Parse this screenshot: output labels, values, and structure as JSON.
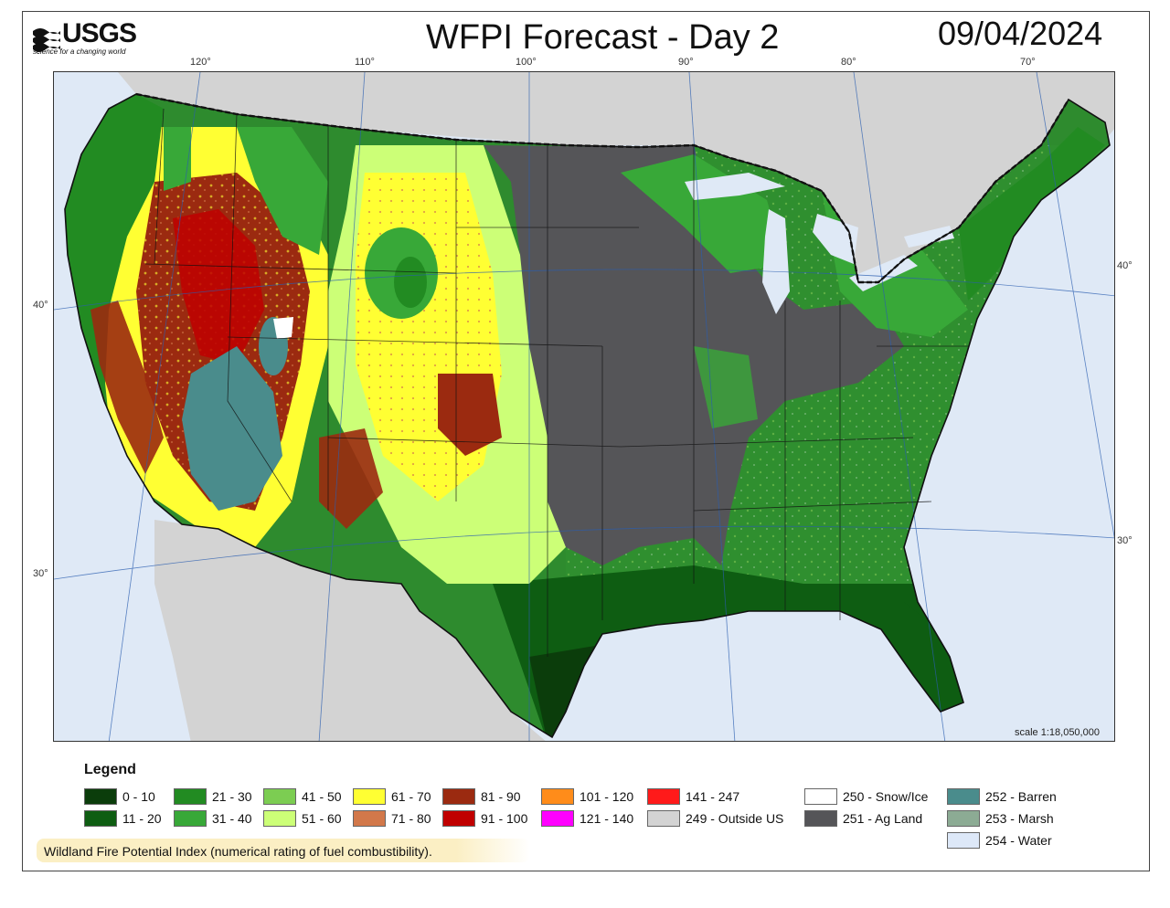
{
  "header": {
    "logo_text": "USGS",
    "logo_tagline": "science for a changing world",
    "title": "WFPI Forecast - Day 2",
    "date": "09/04/2024"
  },
  "map": {
    "longitude_labels": [
      "120°",
      "110°",
      "100°",
      "90°",
      "80°",
      "70°"
    ],
    "latitude_labels_left": [
      "40°",
      "30°"
    ],
    "latitude_labels_right": [
      "40°",
      "30°"
    ],
    "scale_text": "scale 1:18,050,000"
  },
  "legend": {
    "title": "Legend",
    "items": [
      {
        "label": "0 - 10",
        "color": "#0b3d0b"
      },
      {
        "label": "11 - 20",
        "color": "#0e5d12"
      },
      {
        "label": "21 - 30",
        "color": "#228b22"
      },
      {
        "label": "31 - 40",
        "color": "#38a838"
      },
      {
        "label": "41 - 50",
        "color": "#7ccd52"
      },
      {
        "label": "51 - 60",
        "color": "#ccff77"
      },
      {
        "label": "61 - 70",
        "color": "#ffff33"
      },
      {
        "label": "71 - 80",
        "color": "#d2784a"
      },
      {
        "label": "81 - 90",
        "color": "#9b2a10"
      },
      {
        "label": "91 - 100",
        "color": "#c00000"
      },
      {
        "label": "101 - 120",
        "color": "#ff8c1a"
      },
      {
        "label": "121 - 140",
        "color": "#ff00ff"
      },
      {
        "label": "141 - 247",
        "color": "#ff1a1a"
      },
      {
        "label": "249 - Outside US",
        "color": "#d3d3d3"
      },
      {
        "label": "250 - Snow/Ice",
        "color": "#ffffff"
      },
      {
        "label": "251 - Ag Land",
        "color": "#555558"
      },
      {
        "label": "252 - Barren",
        "color": "#4a8c8c"
      },
      {
        "label": "253 - Marsh",
        "color": "#8cab94"
      },
      {
        "label": "254 - Water",
        "color": "#dde8f8"
      }
    ]
  },
  "footer_note": "Wildland Fire Potential Index (numerical rating of fuel combustibility)."
}
